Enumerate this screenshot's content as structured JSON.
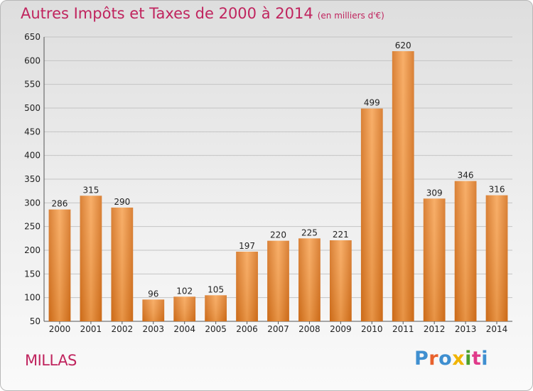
{
  "header": {
    "title": "Autres Impôts et Taxes de 2000 à 2014",
    "unit": "(en milliers d'€)"
  },
  "footer": {
    "location": "MILLAS",
    "brand": "Proxiti"
  },
  "colors": {
    "title": "#c0245e",
    "bar_light": "#f7a455",
    "bar_dark": "#d4701c"
  },
  "chart_data": {
    "type": "bar",
    "title": "Autres Impôts et Taxes de 2000 à 2014",
    "subtitle": "(en milliers d'€)",
    "categories": [
      "2000",
      "2001",
      "2002",
      "2003",
      "2004",
      "2005",
      "2006",
      "2007",
      "2008",
      "2009",
      "2010",
      "2011",
      "2012",
      "2013",
      "2014"
    ],
    "values": [
      286,
      315,
      290,
      96,
      102,
      105,
      197,
      220,
      225,
      221,
      499,
      620,
      309,
      346,
      316
    ],
    "ylim": [
      50,
      650
    ],
    "yticks": [
      50,
      100,
      150,
      200,
      250,
      300,
      350,
      400,
      450,
      500,
      550,
      600,
      650
    ],
    "grid": true
  }
}
